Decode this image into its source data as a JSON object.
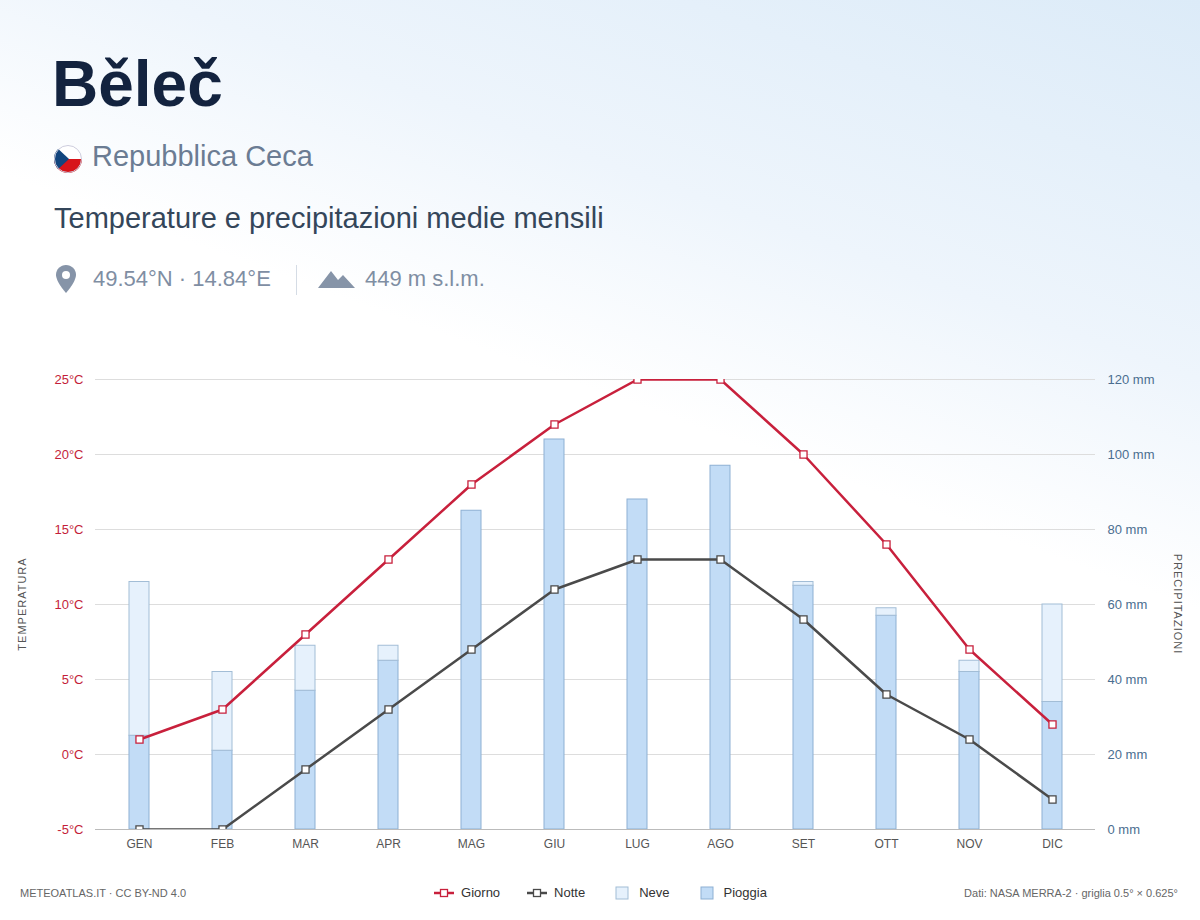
{
  "chart_data": {
    "type": "bar",
    "title": "Běleč",
    "country": "Repubblica Ceca",
    "subtitle": "Temperature e precipitazioni medie mensili",
    "coordinates": "49.54°N · 14.84°E",
    "elevation": "449 m s.l.m.",
    "source": "METEOATLAS.IT · CC BY-ND 4.0",
    "data_note": "Dati: NASA MERRA-2 · griglia 0.5° × 0.625°",
    "ylabel": "TEMPERATURA",
    "y2label": "PRECIPITAZIONI",
    "categories": [
      "GEN",
      "FEB",
      "MAR",
      "APR",
      "MAG",
      "GIU",
      "LUG",
      "AGO",
      "SET",
      "OTT",
      "NOV",
      "DIC"
    ],
    "series": [
      {
        "name": "Giorno",
        "type": "line",
        "color": "#c8203c",
        "marker": "square",
        "values": [
          1,
          3,
          8,
          13,
          18,
          22,
          25,
          25,
          20,
          14,
          7,
          2
        ]
      },
      {
        "name": "Notte",
        "type": "line",
        "color": "#4a4a4a",
        "marker": "square",
        "values": [
          -5,
          -5,
          -1,
          3,
          7,
          11,
          13,
          13,
          9,
          4,
          1,
          -3
        ]
      },
      {
        "name": "Neve",
        "type": "bar",
        "axis": "y2",
        "color": "#e6f1fc",
        "values": [
          41,
          21,
          12,
          4,
          0,
          0,
          0,
          0,
          1,
          2,
          3,
          26
        ]
      },
      {
        "name": "Pioggia",
        "type": "bar",
        "axis": "y2",
        "color": "#c2dcf6",
        "values": [
          25,
          21,
          37,
          45,
          85,
          104,
          88,
          97,
          65,
          57,
          42,
          34
        ]
      }
    ],
    "stacked": true,
    "ylim": [
      -5,
      25
    ],
    "yticks": [
      {
        "value": -5,
        "label": "-5°C"
      },
      {
        "value": 0,
        "label": "0°C"
      },
      {
        "value": 5,
        "label": "5°C"
      },
      {
        "value": 10,
        "label": "10°C"
      },
      {
        "value": 15,
        "label": "15°C"
      },
      {
        "value": 20,
        "label": "20°C"
      },
      {
        "value": 25,
        "label": "25°C"
      }
    ],
    "y2lim": [
      0,
      120
    ],
    "y2ticks": [
      {
        "value": 0,
        "label": "0 mm"
      },
      {
        "value": 20,
        "label": "20 mm"
      },
      {
        "value": 40,
        "label": "40 mm"
      },
      {
        "value": 60,
        "label": "60 mm"
      },
      {
        "value": 80,
        "label": "80 mm"
      },
      {
        "value": 100,
        "label": "100 mm"
      },
      {
        "value": 120,
        "label": "120 mm"
      }
    ],
    "grid": true,
    "legend": "bottom"
  }
}
